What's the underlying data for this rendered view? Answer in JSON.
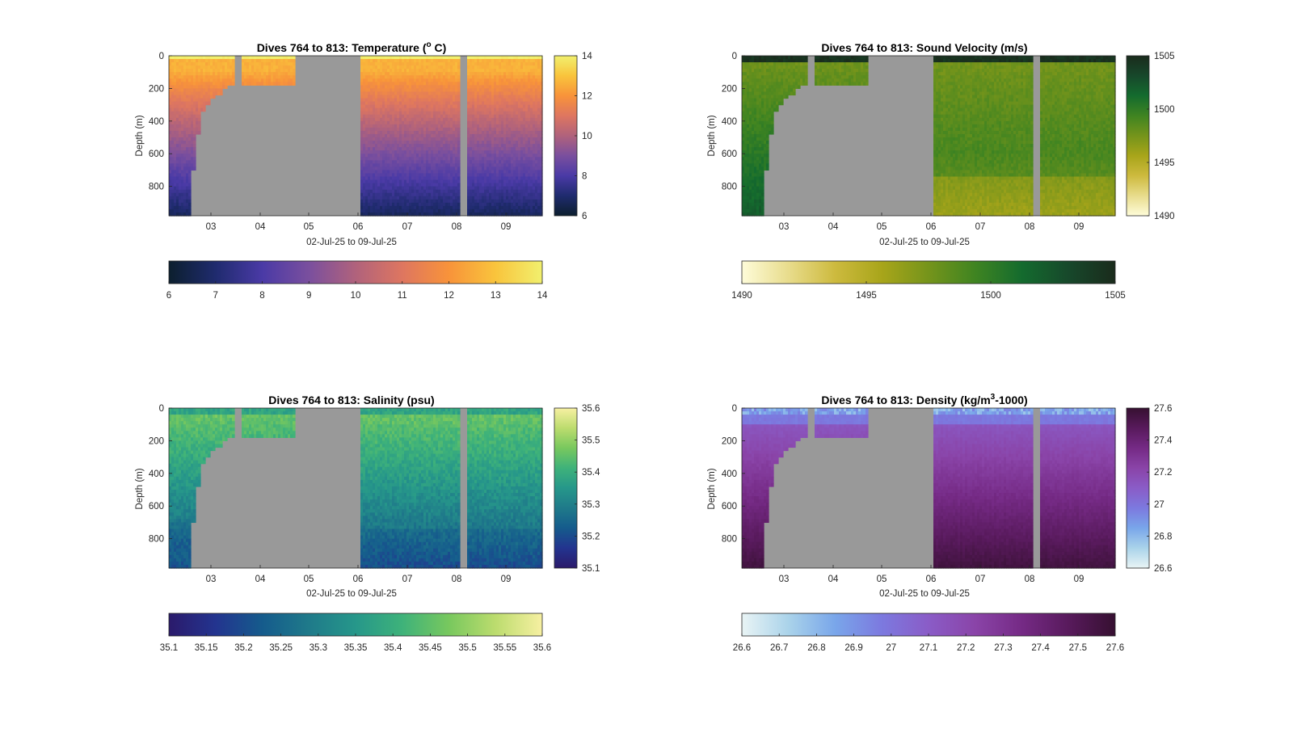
{
  "figure": {
    "background": "#ffffff",
    "nodata_color": "#999999"
  },
  "chart_data": [
    {
      "type": "heatmap",
      "title": "Dives 764 to 813: Temperature (",
      "title_sup": "o",
      "title_end": " C)",
      "xlabel": "02-Jul-25 to 09-Jul-25",
      "ylabel": "Depth (m)",
      "x_ticks": [
        "03",
        "04",
        "05",
        "06",
        "07",
        "08",
        "09"
      ],
      "y_ticks": [
        "0",
        "200",
        "400",
        "600",
        "800"
      ],
      "y_tick_values": [
        0,
        200,
        400,
        600,
        800
      ],
      "ylim": [
        0,
        980
      ],
      "xlim_days": [
        2.17,
        9.79
      ],
      "variable": "temperature",
      "colormap": [
        "#0c1f2e",
        "#1f2b6e",
        "#4a3aa6",
        "#7a4f9e",
        "#b0627c",
        "#de7660",
        "#f8933a",
        "#f9c43c",
        "#f1f06e"
      ],
      "cbar_v_ticks": [
        "14",
        "12",
        "10",
        "8",
        "6"
      ],
      "cbar_v_values": [
        14,
        12,
        10,
        8,
        6
      ],
      "cbar_h_ticks": [
        "6",
        "7",
        "8",
        "9",
        "10",
        "11",
        "12",
        "13",
        "14"
      ],
      "cbar_h_values": [
        6,
        7,
        8,
        9,
        10,
        11,
        12,
        13,
        14
      ],
      "clim": [
        6,
        14
      ]
    },
    {
      "type": "heatmap",
      "title": "Dives 764 to 813: Sound Velocity (m/s)",
      "title_sup": "",
      "title_end": "",
      "xlabel": "02-Jul-25 to 09-Jul-25",
      "ylabel": "Depth (m)",
      "x_ticks": [
        "03",
        "04",
        "05",
        "06",
        "07",
        "08",
        "09"
      ],
      "y_ticks": [
        "0",
        "200",
        "400",
        "600",
        "800"
      ],
      "y_tick_values": [
        0,
        200,
        400,
        600,
        800
      ],
      "ylim": [
        0,
        980
      ],
      "xlim_days": [
        2.17,
        9.79
      ],
      "variable": "sound_velocity",
      "colormap": [
        "#fefcd9",
        "#e8dc8c",
        "#cdba3e",
        "#a8a51a",
        "#75941b",
        "#3f8421",
        "#146b2e",
        "#17482b",
        "#1a2b1c"
      ],
      "cbar_v_ticks": [
        "1505",
        "1500",
        "1495",
        "1490"
      ],
      "cbar_v_values": [
        1505,
        1500,
        1495,
        1490
      ],
      "cbar_h_ticks": [
        "1490",
        "1495",
        "1500",
        "1505"
      ],
      "cbar_h_values": [
        1490,
        1495,
        1500,
        1505
      ],
      "clim": [
        1490,
        1505
      ]
    },
    {
      "type": "heatmap",
      "title": "Dives 764 to 813: Salinity (psu)",
      "title_sup": "",
      "title_end": "",
      "xlabel": "02-Jul-25 to 09-Jul-25",
      "ylabel": "Depth (m)",
      "x_ticks": [
        "03",
        "04",
        "05",
        "06",
        "07",
        "08",
        "09"
      ],
      "y_ticks": [
        "0",
        "200",
        "400",
        "600",
        "800"
      ],
      "y_tick_values": [
        0,
        200,
        400,
        600,
        800
      ],
      "ylim": [
        0,
        980
      ],
      "xlim_days": [
        2.17,
        9.79
      ],
      "variable": "salinity",
      "colormap": [
        "#2b1a6b",
        "#23348f",
        "#155b8c",
        "#1f7a8a",
        "#26978a",
        "#3eb27a",
        "#78c85e",
        "#bcdc6e",
        "#f7f0a2"
      ],
      "cbar_v_ticks": [
        "35.6",
        "35.5",
        "35.4",
        "35.3",
        "35.2",
        "35.1"
      ],
      "cbar_v_values": [
        35.6,
        35.5,
        35.4,
        35.3,
        35.2,
        35.1
      ],
      "cbar_h_ticks": [
        "35.1",
        "35.15",
        "35.2",
        "35.25",
        "35.3",
        "35.35",
        "35.4",
        "35.45",
        "35.5",
        "35.55",
        "35.6"
      ],
      "cbar_h_values": [
        35.1,
        35.15,
        35.2,
        35.25,
        35.3,
        35.35,
        35.4,
        35.45,
        35.5,
        35.55,
        35.6
      ],
      "clim": [
        35.1,
        35.6
      ]
    },
    {
      "type": "heatmap",
      "title": "Dives 764 to 813: Density (kg/m",
      "title_sup": "3",
      "title_end": "-1000)",
      "xlabel": "02-Jul-25 to 09-Jul-25",
      "ylabel": "Depth (m)",
      "x_ticks": [
        "03",
        "04",
        "05",
        "06",
        "07",
        "08",
        "09"
      ],
      "y_ticks": [
        "0",
        "200",
        "400",
        "600",
        "800"
      ],
      "y_tick_values": [
        0,
        200,
        400,
        600,
        800
      ],
      "ylim": [
        0,
        980
      ],
      "xlim_days": [
        2.17,
        9.79
      ],
      "variable": "density",
      "colormap": [
        "#e9f4f5",
        "#aad3ea",
        "#79a6ea",
        "#7c79df",
        "#8a5cc7",
        "#8a44a8",
        "#752a85",
        "#581a5c",
        "#361031"
      ],
      "cbar_v_ticks": [
        "27.6",
        "27.4",
        "27.2",
        "27",
        "26.8",
        "26.6"
      ],
      "cbar_v_values": [
        27.6,
        27.4,
        27.2,
        27.0,
        26.8,
        26.6
      ],
      "cbar_h_ticks": [
        "26.6",
        "26.7",
        "26.8",
        "26.9",
        "27",
        "27.1",
        "27.2",
        "27.3",
        "27.4",
        "27.5",
        "27.6"
      ],
      "cbar_h_values": [
        26.6,
        26.7,
        26.8,
        26.9,
        27.0,
        27.1,
        27.2,
        27.3,
        27.4,
        27.5,
        27.6
      ],
      "clim": [
        26.6,
        27.6
      ]
    }
  ]
}
